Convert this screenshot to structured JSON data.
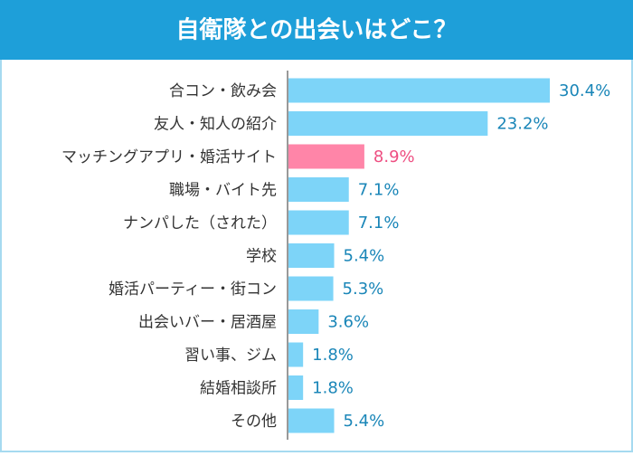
{
  "chart_data": {
    "type": "barh",
    "title": "自衛隊との出会いはどこ？",
    "categories": [
      "合コン・飲み会",
      "友人・知人の紹介",
      "マッチングアプリ・婚活サイト",
      "職場・バイト先",
      "ナンパした（された）",
      "学校",
      "婚活パーティー・街コン",
      "出会いバー・居酒屋",
      "習い事、ジム",
      "結婚相談所",
      "その他"
    ],
    "values": [
      30.4,
      23.2,
      8.9,
      7.1,
      7.1,
      5.4,
      5.3,
      3.6,
      1.8,
      1.8,
      5.4
    ],
    "value_labels": [
      "30.4%",
      "23.2%",
      "8.9%",
      "7.1%",
      "7.1%",
      "5.4%",
      "5.3%",
      "3.6%",
      "1.8%",
      "1.8%",
      "5.4%"
    ],
    "colors": [
      "#7dd4f8",
      "#7dd4f8",
      "#ff85a8",
      "#7dd4f8",
      "#7dd4f8",
      "#7dd4f8",
      "#7dd4f8",
      "#7dd4f8",
      "#7dd4f8",
      "#7dd4f8",
      "#7dd4f8"
    ],
    "label_colors": [
      "#1a86b8",
      "#1a86b8",
      "#ee4f82",
      "#1a86b8",
      "#1a86b8",
      "#1a86b8",
      "#1a86b8",
      "#1a86b8",
      "#1a86b8",
      "#1a86b8",
      "#1a86b8"
    ]
  }
}
